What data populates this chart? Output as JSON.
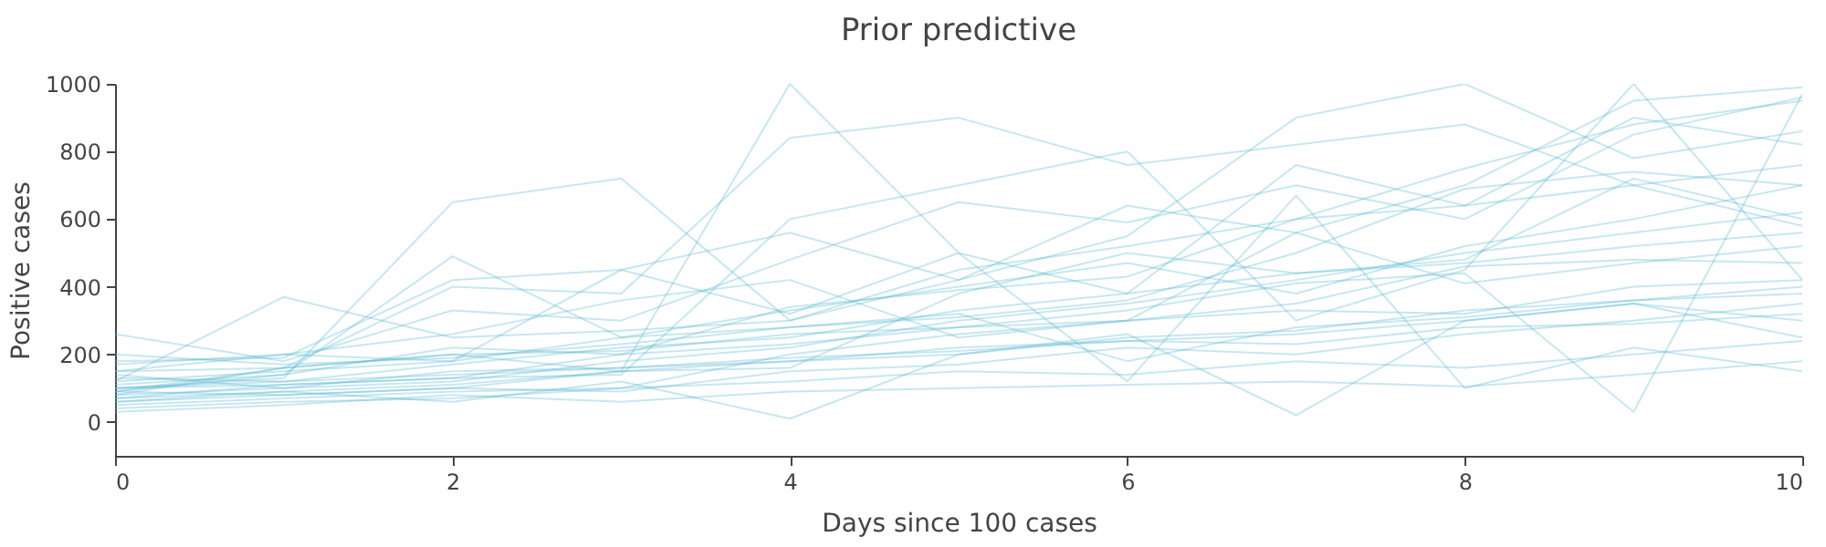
{
  "chart_data": {
    "type": "line",
    "title": "Prior predictive",
    "xlabel": "Days since 100 cases",
    "ylabel": "Positive cases",
    "x": [
      0,
      1,
      2,
      3,
      4,
      5,
      6,
      7,
      8,
      9,
      10
    ],
    "xlim": [
      0,
      10
    ],
    "xticks": [
      0,
      2,
      4,
      6,
      8,
      10
    ],
    "ylim": [
      -100,
      1000
    ],
    "yticks": [
      0,
      200,
      400,
      600,
      800,
      {
        "value": 1000,
        "label": "1000"
      }
    ],
    "grid": false,
    "legend": false,
    "series": [
      {
        "color": "#5bb9d4",
        "values": [
          100,
          130,
          650,
          720,
          300,
          450,
          520,
          600,
          750,
          880,
          950
        ]
      },
      {
        "color": "#5bb9d4",
        "values": [
          90,
          160,
          200,
          150,
          1000,
          500,
          380,
          760,
          640,
          900,
          820
        ]
      },
      {
        "color": "#5bb9d4",
        "values": [
          80,
          100,
          120,
          180,
          220,
          300,
          350,
          420,
          500,
          560,
          620
        ]
      },
      {
        "color": "#5bb9d4",
        "values": [
          150,
          200,
          180,
          250,
          330,
          400,
          470,
          380,
          520,
          600,
          700
        ]
      },
      {
        "color": "#5bb9d4",
        "values": [
          60,
          80,
          100,
          90,
          150,
          170,
          220,
          200,
          260,
          300,
          350
        ]
      },
      {
        "color": "#5bb9d4",
        "values": [
          120,
          370,
          250,
          270,
          300,
          420,
          640,
          560,
          700,
          950,
          990
        ]
      },
      {
        "color": "#5bb9d4",
        "values": [
          40,
          60,
          70,
          100,
          120,
          150,
          140,
          180,
          160,
          200,
          240
        ]
      },
      {
        "color": "#5bb9d4",
        "values": [
          180,
          190,
          420,
          450,
          560,
          420,
          550,
          900,
          1000,
          780,
          860
        ]
      },
      {
        "color": "#5bb9d4",
        "values": [
          100,
          110,
          130,
          200,
          230,
          280,
          300,
          330,
          320,
          400,
          420
        ]
      },
      {
        "color": "#5bb9d4",
        "values": [
          70,
          90,
          60,
          120,
          10,
          200,
          260,
          20,
          300,
          350,
          250
        ]
      },
      {
        "color": "#5bb9d4",
        "values": [
          260,
          180,
          330,
          300,
          480,
          650,
          590,
          700,
          600,
          850,
          960
        ]
      },
      {
        "color": "#5bb9d4",
        "values": [
          30,
          50,
          80,
          60,
          90,
          100,
          110,
          120,
          105,
          140,
          180
        ]
      },
      {
        "color": "#5bb9d4",
        "values": [
          130,
          120,
          170,
          220,
          250,
          330,
          380,
          440,
          470,
          520,
          560
        ]
      },
      {
        "color": "#5bb9d4",
        "values": [
          90,
          140,
          490,
          250,
          280,
          310,
          360,
          500,
          690,
          740,
          700
        ]
      },
      {
        "color": "#5bb9d4",
        "values": [
          110,
          140,
          220,
          200,
          340,
          390,
          430,
          600,
          640,
          700,
          760
        ]
      },
      {
        "color": "#5bb9d4",
        "values": [
          200,
          170,
          190,
          230,
          280,
          320,
          180,
          280,
          310,
          360,
          380
        ]
      },
      {
        "color": "#5bb9d4",
        "values": [
          50,
          70,
          90,
          100,
          200,
          260,
          300,
          350,
          460,
          480,
          470
        ]
      },
      {
        "color": "#5bb9d4",
        "values": [
          80,
          160,
          400,
          380,
          840,
          900,
          760,
          820,
          880,
          700,
          580
        ]
      },
      {
        "color": "#5bb9d4",
        "values": [
          140,
          100,
          150,
          160,
          180,
          220,
          240,
          260,
          300,
          350,
          300
        ]
      },
      {
        "color": "#5bb9d4",
        "values": [
          60,
          90,
          110,
          150,
          160,
          380,
          500,
          440,
          480,
          720,
          600
        ]
      },
      {
        "color": "#5bb9d4",
        "values": [
          170,
          200,
          260,
          360,
          420,
          250,
          300,
          560,
          410,
          470,
          520
        ]
      },
      {
        "color": "#5bb9d4",
        "values": [
          100,
          120,
          140,
          160,
          190,
          210,
          240,
          230,
          280,
          290,
          320
        ]
      },
      {
        "color": "#5bb9d4",
        "values": [
          70,
          110,
          130,
          140,
          600,
          700,
          800,
          300,
          450,
          1000,
          420
        ]
      },
      {
        "color": "#5bb9d4",
        "values": [
          120,
          150,
          180,
          450,
          320,
          500,
          120,
          670,
          100,
          220,
          150
        ]
      },
      {
        "color": "#5bb9d4",
        "values": [
          90,
          80,
          100,
          150,
          180,
          200,
          250,
          270,
          330,
          360,
          400
        ]
      },
      {
        "color": "#5bb9d4",
        "values": [
          150,
          160,
          200,
          210,
          260,
          280,
          330,
          410,
          440,
          30,
          970
        ]
      }
    ]
  }
}
